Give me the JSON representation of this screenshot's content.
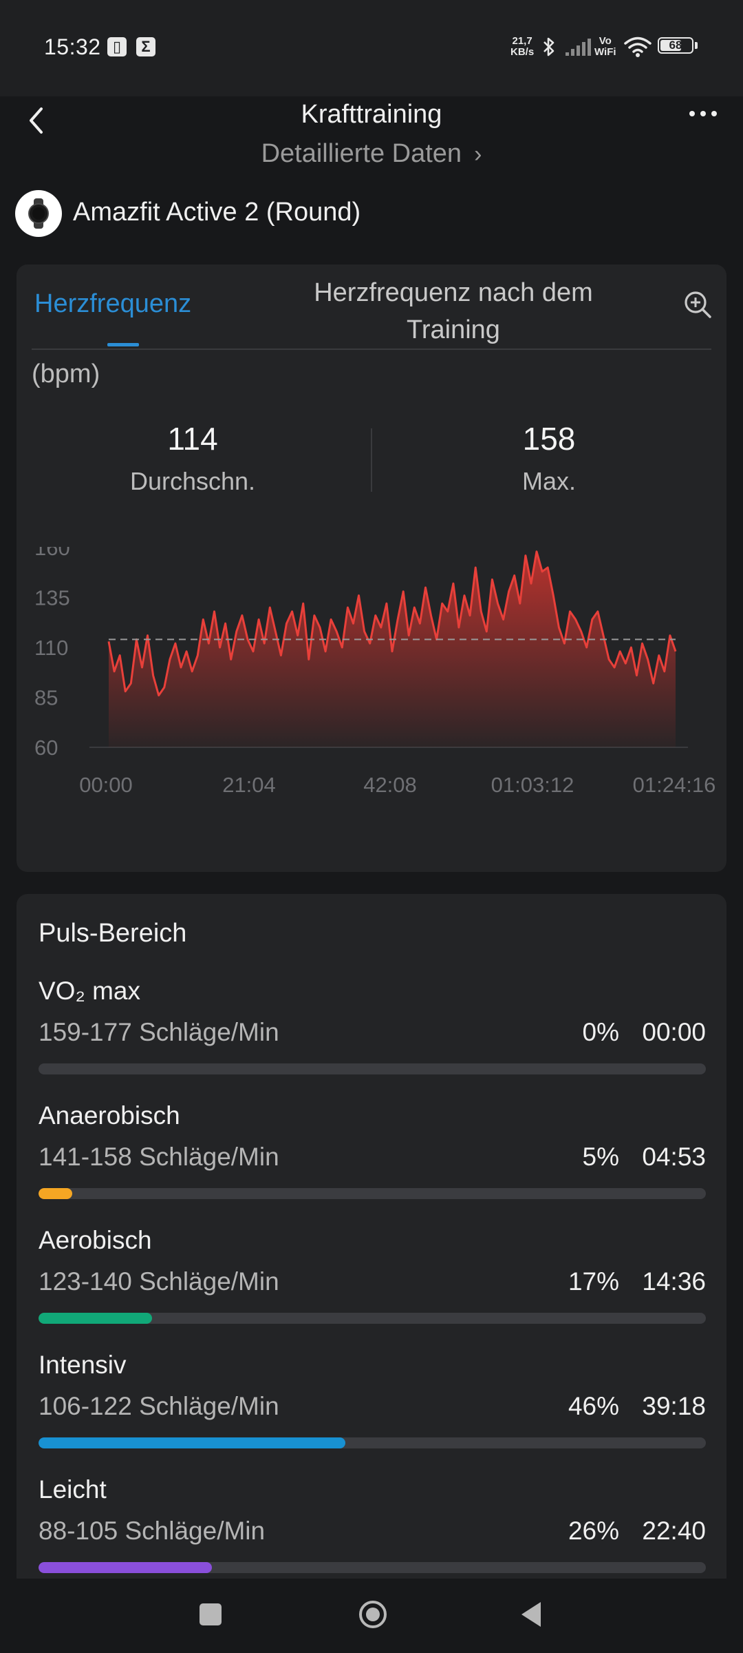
{
  "status_bar": {
    "time": "15:32",
    "net_speed_value": "21,7",
    "net_speed_unit": "KB/s",
    "vowifi_top": "Vo",
    "vowifi_bottom": "WiFi",
    "battery": "68",
    "battery_level": 0.68
  },
  "header": {
    "title": "Krafttraining",
    "detailed_data": "Detaillierte Daten",
    "device_name": "Amazfit Active 2 (Round)"
  },
  "hr_card": {
    "tab_active": "Herzfrequenz",
    "tab_other": "Herzfrequenz nach dem Training",
    "unit": "(bpm)",
    "avg_value": "114",
    "avg_label": "Durchschn.",
    "max_value": "158",
    "max_label": "Max."
  },
  "chart_data": {
    "type": "area",
    "y_ticks": [
      "160",
      "135",
      "110",
      "85",
      "60"
    ],
    "x_ticks": [
      "00:00",
      "21:04",
      "42:08",
      "01:03:12",
      "01:24:16"
    ],
    "ylim": [
      60,
      160
    ],
    "x_duration_min": 84.27,
    "avg_line": 114,
    "line_color": "#e8403a",
    "series_samples_bpm": [
      113,
      98,
      106,
      88,
      92,
      114,
      100,
      116,
      96,
      86,
      90,
      104,
      112,
      100,
      108,
      98,
      106,
      124,
      112,
      128,
      110,
      122,
      104,
      118,
      126,
      114,
      108,
      124,
      112,
      130,
      118,
      106,
      122,
      128,
      116,
      132,
      104,
      126,
      120,
      108,
      124,
      118,
      110,
      130,
      122,
      136,
      118,
      112,
      126,
      120,
      132,
      108,
      124,
      138,
      116,
      130,
      122,
      140,
      126,
      114,
      132,
      128,
      142,
      120,
      136,
      126,
      150,
      128,
      118,
      144,
      132,
      124,
      138,
      146,
      132,
      156,
      142,
      158,
      148,
      150,
      136,
      120,
      112,
      128,
      124,
      118,
      110,
      124,
      128,
      116,
      104,
      100,
      108,
      102,
      110,
      96,
      112,
      104,
      92,
      106,
      98,
      116,
      108
    ]
  },
  "zones": {
    "title": "Puls-Bereich",
    "items": [
      {
        "name": "VO₂ max",
        "range": "159-177 Schläge/Min",
        "percent": "0%",
        "time": "00:00",
        "fraction": 0.0,
        "color": "#8a8b8f"
      },
      {
        "name": "Anaerobisch",
        "range": "141-158 Schläge/Min",
        "percent": "5%",
        "time": "04:53",
        "fraction": 0.05,
        "color": "#f5a623"
      },
      {
        "name": "Aerobisch",
        "range": "123-140 Schläge/Min",
        "percent": "17%",
        "time": "14:36",
        "fraction": 0.17,
        "color": "#11a878"
      },
      {
        "name": "Intensiv",
        "range": "106-122 Schläge/Min",
        "percent": "46%",
        "time": "39:18",
        "fraction": 0.46,
        "color": "#1891d2"
      },
      {
        "name": "Leicht",
        "range": "88-105 Schläge/Min",
        "percent": "26%",
        "time": "22:40",
        "fraction": 0.26,
        "color": "#8a4fdb"
      }
    ]
  }
}
